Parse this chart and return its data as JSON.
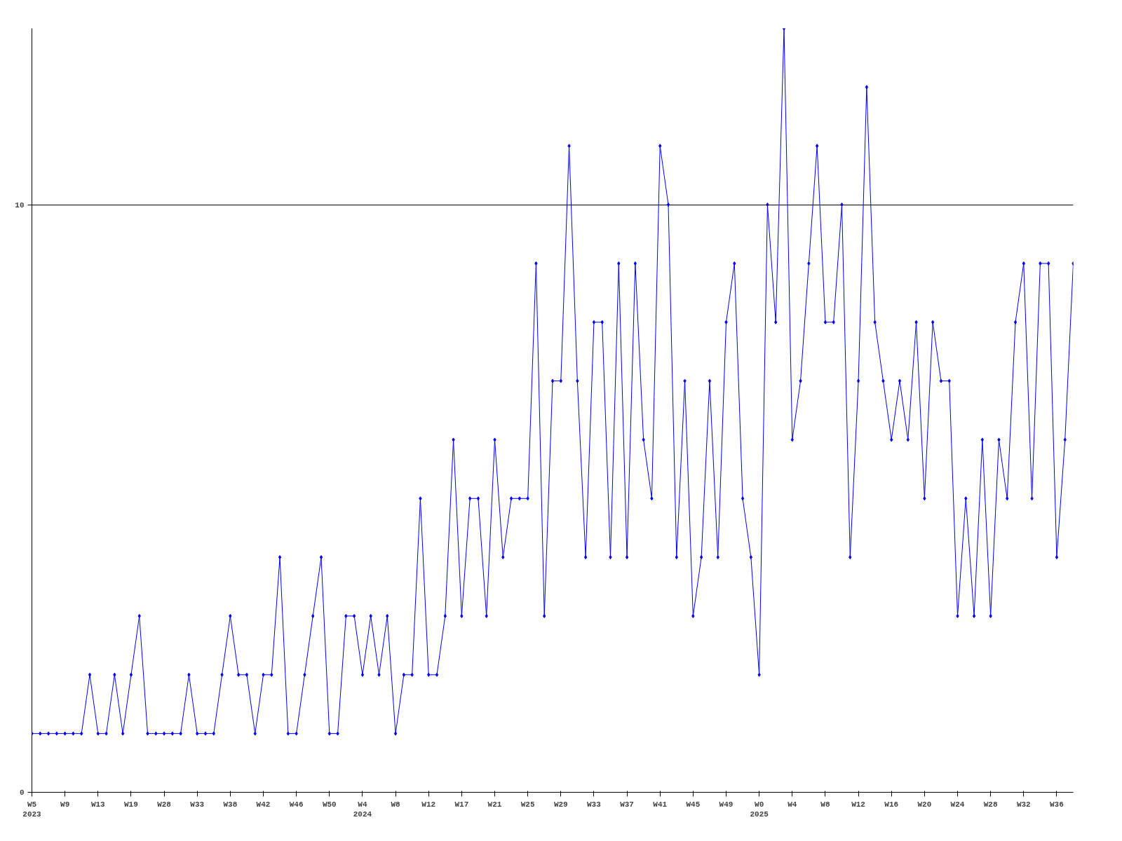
{
  "chart_data": {
    "type": "line",
    "categories": [
      "W5\n2023",
      null,
      null,
      null,
      "W9",
      null,
      null,
      null,
      "W13",
      null,
      null,
      null,
      "W19",
      null,
      null,
      null,
      "W28",
      null,
      null,
      null,
      "W33",
      null,
      null,
      null,
      "W38",
      null,
      null,
      null,
      "W42",
      null,
      null,
      null,
      "W46",
      null,
      null,
      null,
      "W50",
      null,
      null,
      null,
      "W4\n2024",
      null,
      null,
      null,
      "W8",
      null,
      null,
      null,
      "W12",
      null,
      null,
      null,
      "W17",
      null,
      null,
      null,
      "W21",
      null,
      null,
      null,
      "W25",
      null,
      null,
      null,
      "W29",
      null,
      null,
      null,
      "W33",
      null,
      null,
      null,
      "W37",
      null,
      null,
      null,
      "W41",
      null,
      null,
      null,
      "W45",
      null,
      null,
      null,
      "W49",
      null,
      null,
      null,
      "W0\n2025",
      null,
      null,
      null,
      "W4",
      null,
      null,
      null,
      "W8",
      null,
      null,
      null,
      "W12",
      null,
      null,
      null,
      "W16",
      null,
      null,
      null,
      "W20",
      null,
      null,
      null,
      "W24",
      null,
      null,
      null,
      "W28",
      null,
      null,
      null,
      "W32",
      null,
      null,
      null,
      "W36",
      null,
      null
    ],
    "series": [
      {
        "color": "#0000ff",
        "values": [
          1,
          1,
          1,
          1,
          1,
          1,
          1,
          2,
          1,
          1,
          2,
          1,
          2,
          3,
          1,
          1,
          1,
          1,
          1,
          2,
          1,
          1,
          1,
          2,
          3,
          2,
          2,
          1,
          2,
          2,
          4,
          1,
          1,
          2,
          3,
          4,
          1,
          1,
          3,
          3,
          2,
          3,
          2,
          3,
          1,
          2,
          2,
          5,
          2,
          2,
          3,
          6,
          3,
          5,
          5,
          3,
          6,
          4,
          5,
          5,
          5,
          9,
          3,
          7,
          7,
          11,
          7,
          4,
          8,
          8,
          4,
          9,
          4,
          9,
          6,
          5,
          11,
          10,
          4,
          7,
          3,
          4,
          7,
          4,
          8,
          9,
          5,
          4,
          2,
          10,
          8,
          13,
          6,
          7,
          9,
          11,
          8,
          8,
          10,
          4,
          7,
          12,
          8,
          7,
          6,
          7,
          6,
          8,
          5,
          8,
          7,
          7,
          3,
          5,
          3,
          6,
          3,
          6,
          5,
          8,
          9,
          5,
          9,
          9,
          4,
          6,
          9
        ]
      }
    ],
    "ylim": [
      0,
      13
    ],
    "yticks": [
      0,
      10
    ],
    "grid": "y",
    "marker": "diamond",
    "line_style": "solid"
  }
}
